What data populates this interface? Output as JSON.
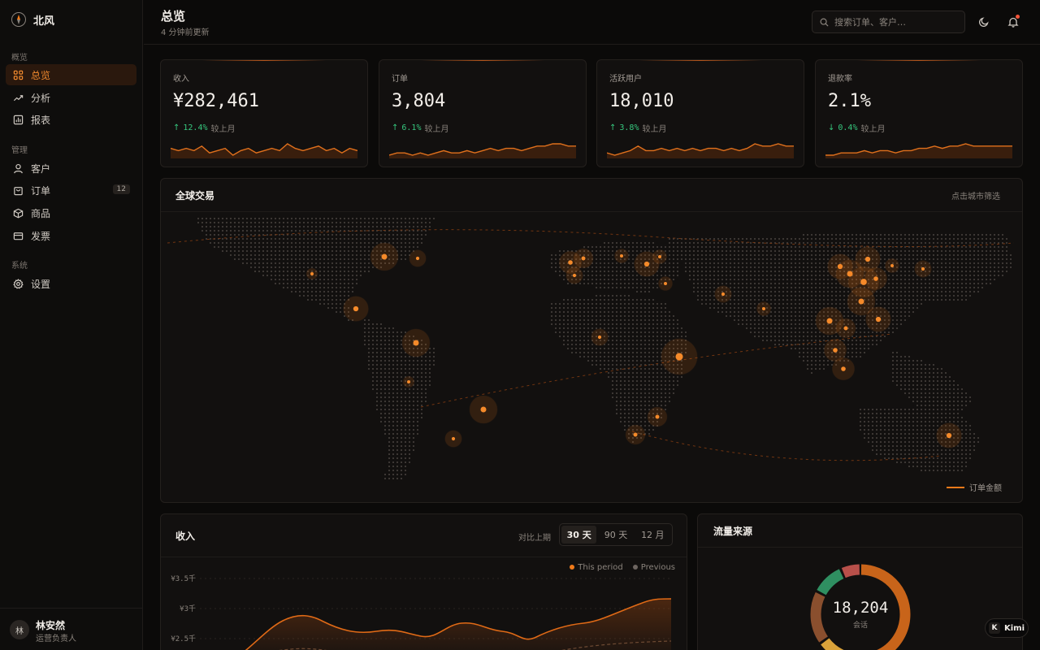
{
  "brand": {
    "name": "北风"
  },
  "sidebar": {
    "sections": [
      "概览",
      "管理",
      "系统"
    ],
    "items": [
      {
        "label": "总览",
        "icon": "grid-icon",
        "active": true
      },
      {
        "label": "分析",
        "icon": "trend-icon"
      },
      {
        "label": "报表",
        "icon": "bar-chart-icon"
      },
      {
        "label": "客户",
        "icon": "user-icon"
      },
      {
        "label": "订单",
        "icon": "bag-icon",
        "badge": "12"
      },
      {
        "label": "商品",
        "icon": "box-icon"
      },
      {
        "label": "发票",
        "icon": "card-icon"
      },
      {
        "label": "设置",
        "icon": "gear-icon"
      }
    ],
    "user": {
      "initial": "林",
      "name": "林安然",
      "role": "运营负责人"
    }
  },
  "header": {
    "title": "总览",
    "subtitle": "4 分钟前更新",
    "search_placeholder": "搜索订单、客户…"
  },
  "kpis": [
    {
      "label": "收入",
      "value": "¥282,461",
      "arrow": "↑",
      "delta": "12.4%",
      "compare": "较上月",
      "spark": [
        6,
        5,
        6,
        5,
        7,
        4,
        5,
        6,
        3,
        5,
        6,
        4,
        5,
        6,
        5,
        8,
        6,
        5,
        6,
        7,
        5,
        6,
        4,
        6,
        5
      ]
    },
    {
      "label": "订单",
      "value": "3,804",
      "arrow": "↑",
      "delta": "6.1%",
      "compare": "较上月",
      "spark": [
        3,
        4,
        4,
        3,
        4,
        3,
        4,
        5,
        4,
        4,
        5,
        4,
        5,
        6,
        5,
        6,
        6,
        5,
        6,
        7,
        7,
        8,
        8,
        7,
        7
      ]
    },
    {
      "label": "活跃用户",
      "value": "18,010",
      "arrow": "↑",
      "delta": "3.8%",
      "compare": "较上月",
      "spark": [
        4,
        3,
        4,
        5,
        7,
        5,
        5,
        6,
        5,
        6,
        5,
        6,
        5,
        6,
        6,
        5,
        6,
        5,
        6,
        8,
        7,
        7,
        8,
        7,
        7
      ]
    },
    {
      "label": "退款率",
      "value": "2.1%",
      "arrow": "↓",
      "delta": "0.4%",
      "compare": "较上月",
      "spark": [
        3,
        3,
        4,
        4,
        4,
        5,
        4,
        5,
        5,
        4,
        5,
        5,
        6,
        6,
        7,
        6,
        7,
        7,
        8,
        7,
        7,
        7,
        7,
        7,
        7
      ]
    }
  ],
  "map": {
    "title": "全球交易",
    "hint": "点击城市筛选",
    "legend": "订单金额"
  },
  "revenue": {
    "title": "收入",
    "compare_label": "对比上期",
    "ranges": [
      "30 天",
      "90 天",
      "12 月"
    ],
    "active_range": "30 天",
    "legend": [
      "This period",
      "Previous"
    ],
    "y_ticks": [
      "¥3.5千",
      "¥3千",
      "¥2.5千"
    ]
  },
  "traffic": {
    "title": "流量来源",
    "value": "18,204",
    "label": "会话"
  },
  "colors": {
    "accent": "#f07a1a",
    "up": "#36c77e"
  },
  "kimi": {
    "label": "Kimi"
  }
}
